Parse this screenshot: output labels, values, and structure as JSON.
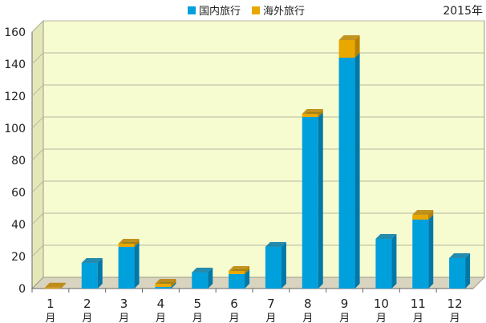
{
  "year_label": "2015年",
  "colors": {
    "domestic": "#00a0dc",
    "domestic_dark": "#0078a8",
    "overseas": "#e8a800",
    "overseas_dark": "#b88000",
    "plot_bg": "#f6fbd0",
    "floor": "#d9d4bf",
    "grid": "#b8b8a0"
  },
  "chart_data": {
    "type": "bar",
    "stacked": true,
    "categories": [
      "1月",
      "2月",
      "3月",
      "4月",
      "5月",
      "6月",
      "7月",
      "8月",
      "9月",
      "10月",
      "11月",
      "12月"
    ],
    "series": [
      {
        "name": "国内旅行",
        "values": [
          0,
          16,
          26,
          1,
          10,
          9,
          26,
          107,
          144,
          31,
          43,
          19
        ]
      },
      {
        "name": "海外旅行",
        "values": [
          0,
          0,
          2,
          2,
          0,
          2,
          0,
          2,
          11,
          0,
          3,
          0
        ]
      }
    ],
    "ylim": [
      0,
      160
    ],
    "yticks": [
      0,
      20,
      40,
      60,
      80,
      100,
      120,
      140,
      160
    ],
    "grid": true,
    "legend": "top"
  }
}
